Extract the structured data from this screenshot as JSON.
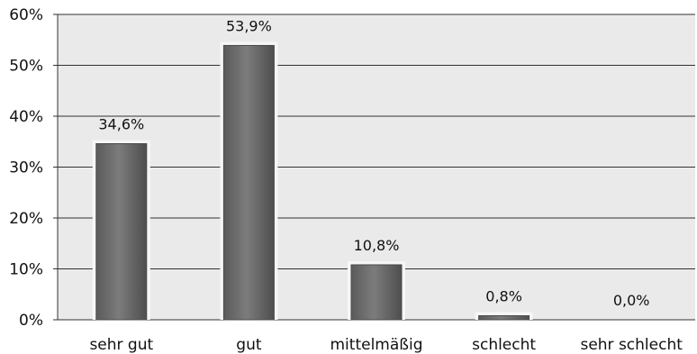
{
  "chart_data": {
    "type": "bar",
    "categories": [
      "sehr gut",
      "gut",
      "mittelmäßig",
      "schlecht",
      "sehr schlecht"
    ],
    "values": [
      34.6,
      53.9,
      10.8,
      0.8,
      0.0
    ],
    "data_labels": [
      "34,6%",
      "53,9%",
      "10,8%",
      "0,8%",
      "0,0%"
    ],
    "y_ticks": [
      {
        "value": 0,
        "label": "0%"
      },
      {
        "value": 10,
        "label": "10%"
      },
      {
        "value": 20,
        "label": "20%"
      },
      {
        "value": 30,
        "label": "30%"
      },
      {
        "value": 40,
        "label": "40%"
      },
      {
        "value": 50,
        "label": "50%"
      },
      {
        "value": 60,
        "label": "60%"
      }
    ],
    "ylim": [
      0,
      60
    ],
    "grid": true,
    "legend": "none",
    "colors": {
      "plot_background": "#eaeaea",
      "bar": "#6e6e6e",
      "bar_edge": "#4a4a4a",
      "gridline": "#333333"
    }
  }
}
